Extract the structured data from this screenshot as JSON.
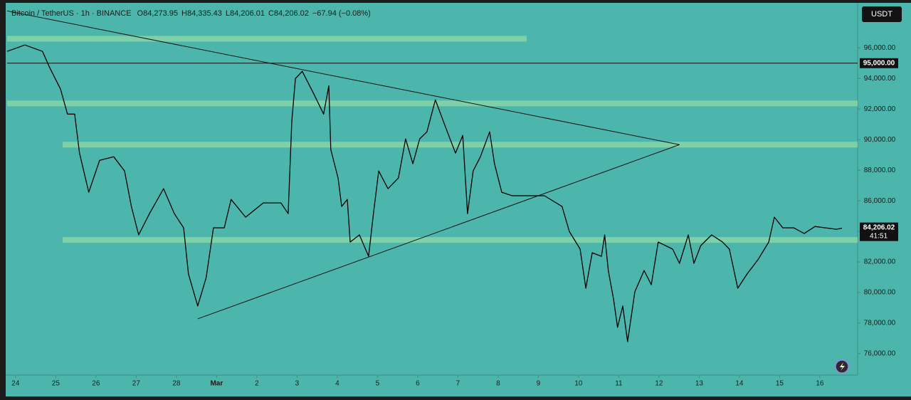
{
  "chart_data": {
    "type": "line",
    "title": "Bitcoin / TetherUS · 1h · BINANCE",
    "ohlc": [
      "O84,273.95",
      "H84,335.43",
      "L84,206.01",
      "C84,206.02",
      "−67.94 (−0.08%)"
    ],
    "currency": "USDT",
    "xlim": [
      -0.21,
      20.94
    ],
    "xticks": [
      {
        "value": 0,
        "label": "24"
      },
      {
        "value": 1,
        "label": "25"
      },
      {
        "value": 2,
        "label": "26"
      },
      {
        "value": 3,
        "label": "27"
      },
      {
        "value": 4,
        "label": "28"
      },
      {
        "value": 5,
        "label": "Mar"
      },
      {
        "value": 6,
        "label": "2"
      },
      {
        "value": 7,
        "label": "3"
      },
      {
        "value": 8,
        "label": "4"
      },
      {
        "value": 9,
        "label": "5"
      },
      {
        "value": 10,
        "label": "6"
      },
      {
        "value": 11,
        "label": "7"
      },
      {
        "value": 12,
        "label": "8"
      },
      {
        "value": 13,
        "label": "9"
      },
      {
        "value": 14,
        "label": "10"
      },
      {
        "value": 15,
        "label": "11"
      },
      {
        "value": 16,
        "label": "12"
      },
      {
        "value": 17,
        "label": "13"
      },
      {
        "value": 18,
        "label": "14"
      },
      {
        "value": 19,
        "label": "15"
      },
      {
        "value": 20,
        "label": "16"
      }
    ],
    "ylim": [
      74600,
      98900
    ],
    "yticks": [
      {
        "value": 76000,
        "label": "76,000.00"
      },
      {
        "value": 78000,
        "label": "78,000.00"
      },
      {
        "value": 80000,
        "label": "80,000.00"
      },
      {
        "value": 82000,
        "label": "82,000.00"
      },
      {
        "value": 84000,
        "label": "84,000.00"
      },
      {
        "value": 86000,
        "label": "86,000.00"
      },
      {
        "value": 88000,
        "label": "88,000.00"
      },
      {
        "value": 90000,
        "label": "90,000.00"
      },
      {
        "value": 92000,
        "label": "92,000.00"
      },
      {
        "value": 94000,
        "label": "94,000.00"
      },
      {
        "value": 96000,
        "label": "96,000.00"
      }
    ],
    "series": [
      {
        "color": "#000000",
        "x": [
          -0.21,
          0.23,
          0.67,
          0.85,
          1.12,
          1.29,
          1.47,
          1.59,
          1.82,
          2.09,
          2.44,
          2.71,
          2.88,
          3.06,
          3.33,
          3.68,
          3.95,
          4.18,
          4.3,
          4.53,
          4.74,
          4.92,
          5.19,
          5.36,
          5.72,
          6.16,
          6.6,
          6.78,
          6.87,
          6.96,
          7.13,
          7.4,
          7.66,
          7.79,
          7.84,
          8.02,
          8.11,
          8.25,
          8.32,
          8.55,
          8.78,
          8.9,
          9.03,
          9.26,
          9.52,
          9.7,
          9.88,
          10.05,
          10.23,
          10.44,
          10.67,
          10.94,
          11.12,
          11.24,
          11.38,
          11.56,
          11.79,
          11.91,
          12.09,
          12.35,
          12.71,
          13.15,
          13.59,
          13.77,
          14.04,
          14.18,
          14.34,
          14.57,
          14.65,
          14.74,
          14.87,
          14.97,
          15.1,
          15.22,
          15.4,
          15.63,
          15.81,
          15.98,
          16.34,
          16.51,
          16.73,
          16.87,
          17.04,
          17.31,
          17.58,
          17.75,
          17.96,
          18.19,
          18.46,
          18.73,
          18.87,
          19.08,
          19.35,
          19.61,
          19.88,
          20.14,
          20.41,
          20.55
        ],
        "values": [
          95770,
          96190,
          95770,
          94700,
          93300,
          91670,
          91670,
          89120,
          86560,
          88650,
          88880,
          87950,
          85630,
          83770,
          85160,
          86790,
          85160,
          84230,
          81210,
          79120,
          80980,
          84230,
          84230,
          86090,
          84930,
          85860,
          85860,
          85160,
          91210,
          94000,
          94470,
          93070,
          91670,
          93530,
          89350,
          87490,
          85630,
          86090,
          83300,
          83770,
          82370,
          85160,
          87950,
          86790,
          87490,
          90050,
          88420,
          90050,
          90510,
          92600,
          90980,
          89120,
          90280,
          85160,
          87950,
          88880,
          90510,
          88420,
          86560,
          86330,
          86330,
          86330,
          85630,
          84000,
          82840,
          80280,
          82600,
          82370,
          83770,
          81440,
          79580,
          77720,
          79120,
          76790,
          80050,
          81440,
          80510,
          83300,
          82840,
          81910,
          83770,
          81910,
          83070,
          83770,
          83300,
          82840,
          80280,
          81210,
          82140,
          83300,
          84930,
          84230,
          84230,
          83860,
          84320,
          84230,
          84140,
          84206.02
        ]
      }
    ],
    "hline": {
      "value": 95000,
      "label": "95,000.00"
    },
    "last_price": {
      "value": 84206.02,
      "label": "84,206.02"
    },
    "countdown": "41:51",
    "trendlines": [
      {
        "x": [
          -0.21,
          16.51
        ],
        "y": [
          98420,
          89670
        ]
      },
      {
        "x": [
          4.53,
          16.51
        ],
        "y": [
          78280,
          89670
        ]
      }
    ],
    "zones": [
      {
        "x": [
          -0.21,
          12.71
        ],
        "y": 96600
      },
      {
        "x": [
          -0.21,
          20.94
        ],
        "y": 92370
      },
      {
        "x": [
          1.17,
          20.94
        ],
        "y": 89670
      },
      {
        "x": [
          1.17,
          20.94
        ],
        "y": 83440
      }
    ]
  }
}
